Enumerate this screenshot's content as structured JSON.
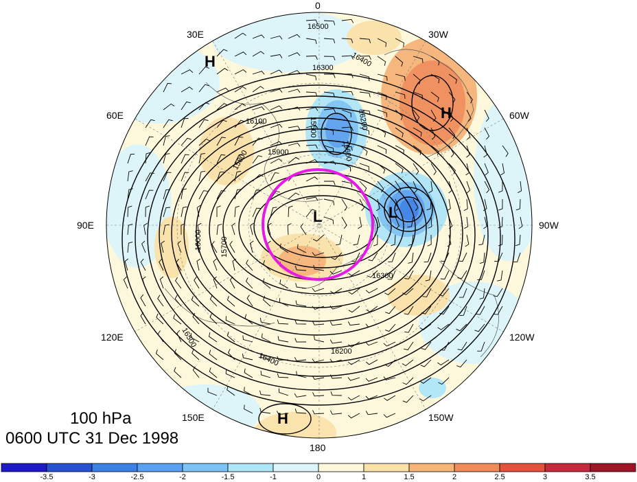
{
  "map": {
    "level": "100 hPa",
    "time": "0600 UTC 31 Dec 1998",
    "longitude_labels": [
      "0",
      "30W",
      "60W",
      "90W",
      "120W",
      "150W",
      "180",
      "150E",
      "120E",
      "90E",
      "60E",
      "30E"
    ],
    "contour_labels": [
      "16500",
      "16400",
      "16300",
      "16200",
      "16100",
      "15600",
      "15500",
      "15900",
      "15800",
      "15700",
      "16000",
      "16300",
      "16500",
      "16400",
      "16200"
    ],
    "pressure_centers": [
      "H",
      "H",
      "L",
      "L",
      "H"
    ],
    "highlight_color": "#e619e6"
  },
  "colorbar": {
    "ticks": [
      "-3.5",
      "-3",
      "-2.5",
      "-2",
      "-1.5",
      "-1",
      "0",
      "1",
      "1.5",
      "2",
      "2.5",
      "3",
      "3.5"
    ],
    "colors": [
      "#1e19c8",
      "#2850d2",
      "#3c82e6",
      "#5aa0f0",
      "#7dc3f5",
      "#aee6f8",
      "#dcf5fa",
      "#fdf8dc",
      "#fae1aa",
      "#f5b478",
      "#f08c5a",
      "#e6503c",
      "#c8283c",
      "#a01428"
    ]
  }
}
